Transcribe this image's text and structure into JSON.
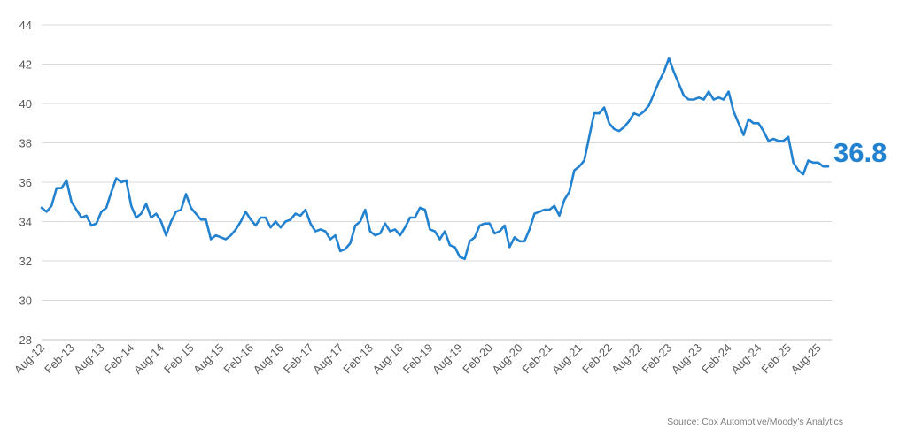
{
  "chart_data": {
    "type": "line",
    "title": "",
    "xlabel": "",
    "ylabel": "",
    "ylim": [
      28,
      44
    ],
    "yticks": [
      28,
      30,
      32,
      34,
      36,
      38,
      40,
      42,
      44
    ],
    "grid": "horizontal",
    "line_color": "#2382CF",
    "end_label": "36.8",
    "x_tick_labels": [
      "Aug-12",
      "Feb-13",
      "Aug-13",
      "Feb-14",
      "Aug-14",
      "Feb-15",
      "Aug-15",
      "Feb-16",
      "Aug-16",
      "Feb-17",
      "Aug-17",
      "Feb-18",
      "Aug-18",
      "Feb-19",
      "Aug-19",
      "Feb-20",
      "Aug-20",
      "Feb-21",
      "Aug-21",
      "Feb-22",
      "Aug-22",
      "Feb-23",
      "Aug-23",
      "Feb-24",
      "Aug-24",
      "Feb-25",
      "Aug-25"
    ],
    "series": [
      {
        "values": [
          34.7,
          34.5,
          34.8,
          35.7,
          35.7,
          36.1,
          35.0,
          34.6,
          34.2,
          34.3,
          33.8,
          33.9,
          34.5,
          34.7,
          35.5,
          36.2,
          36.0,
          36.1,
          34.8,
          34.2,
          34.4,
          34.9,
          34.2,
          34.4,
          34.0,
          33.3,
          34.0,
          34.5,
          34.6,
          35.4,
          34.7,
          34.4,
          34.1,
          34.1,
          33.1,
          33.3,
          33.2,
          33.1,
          33.3,
          33.6,
          34.0,
          34.5,
          34.1,
          33.8,
          34.2,
          34.2,
          33.7,
          34.0,
          33.7,
          34.0,
          34.1,
          34.4,
          34.3,
          34.6,
          33.9,
          33.5,
          33.6,
          33.5,
          33.1,
          33.3,
          32.5,
          32.6,
          32.9,
          33.8,
          34.0,
          34.6,
          33.5,
          33.3,
          33.4,
          33.9,
          33.5,
          33.6,
          33.3,
          33.7,
          34.2,
          34.2,
          34.7,
          34.6,
          33.6,
          33.5,
          33.1,
          33.5,
          32.8,
          32.7,
          32.2,
          32.1,
          33.0,
          33.2,
          33.8,
          33.9,
          33.9,
          33.4,
          33.5,
          33.8,
          32.7,
          33.2,
          33.0,
          33.0,
          33.6,
          34.4,
          34.5,
          34.6,
          34.6,
          34.8,
          34.3,
          35.1,
          35.5,
          36.6,
          36.8,
          37.1,
          38.3,
          39.5,
          39.5,
          39.8,
          39.0,
          38.7,
          38.6,
          38.8,
          39.1,
          39.5,
          39.4,
          39.6,
          39.9,
          40.5,
          41.1,
          41.6,
          42.3,
          41.6,
          41.0,
          40.4,
          40.2,
          40.2,
          40.3,
          40.2,
          40.6,
          40.2,
          40.3,
          40.2,
          40.6,
          39.6,
          39.0,
          38.4,
          39.2,
          39.0,
          39.0,
          38.6,
          38.1,
          38.2,
          38.1,
          38.1,
          38.3,
          37.0,
          36.6,
          36.4,
          37.1,
          37.0,
          37.0,
          36.8,
          36.8
        ]
      }
    ]
  },
  "source_note": "Source: Cox Automotive/Moody’s Analytics"
}
